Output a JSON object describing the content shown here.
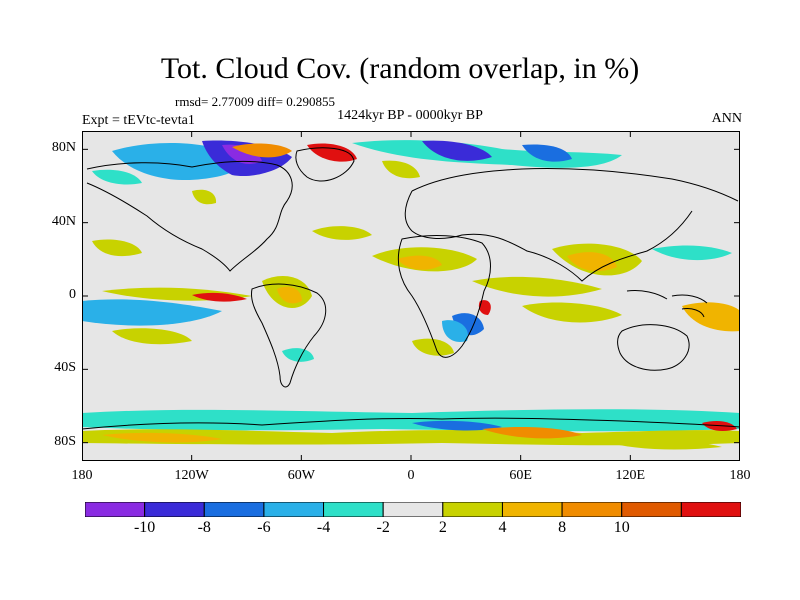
{
  "title": "Tot. Cloud Cov. (random overlap, in %)",
  "stats": "rmsd= 2.77009 diff= 0.290855",
  "period": "1424kyr BP - 0000kyr BP",
  "experiment": "Expt = tEVtc-tevta1",
  "season": "ANN",
  "lat_ticks": [
    {
      "label": "80N",
      "value": 80
    },
    {
      "label": "40N",
      "value": 40
    },
    {
      "label": "0",
      "value": 0
    },
    {
      "label": "40S",
      "value": -40
    },
    {
      "label": "80S",
      "value": -80
    }
  ],
  "lon_ticks": [
    {
      "label": "180",
      "value": -180
    },
    {
      "label": "120W",
      "value": -120
    },
    {
      "label": "60W",
      "value": -60
    },
    {
      "label": "0",
      "value": 0
    },
    {
      "label": "60E",
      "value": 60
    },
    {
      "label": "120E",
      "value": 120
    },
    {
      "label": "180",
      "value": 180
    }
  ],
  "colorbar": {
    "colors": [
      "#8a2be2",
      "#3a2bd8",
      "#1a6ee0",
      "#2ab0e8",
      "#2ee0c8",
      "#e6e6e6",
      "#c8d200",
      "#f0b400",
      "#f08c00",
      "#e05a00",
      "#e01010"
    ],
    "labels": [
      {
        "label": "-10",
        "boundary": 1
      },
      {
        "label": "-8",
        "boundary": 2
      },
      {
        "label": "-6",
        "boundary": 3
      },
      {
        "label": "-4",
        "boundary": 4
      },
      {
        "label": "-2",
        "boundary": 5
      },
      {
        "label": "2",
        "boundary": 6
      },
      {
        "label": "4",
        "boundary": 7
      },
      {
        "label": "8",
        "boundary": 8
      },
      {
        "label": "10",
        "boundary": 9
      }
    ]
  }
}
